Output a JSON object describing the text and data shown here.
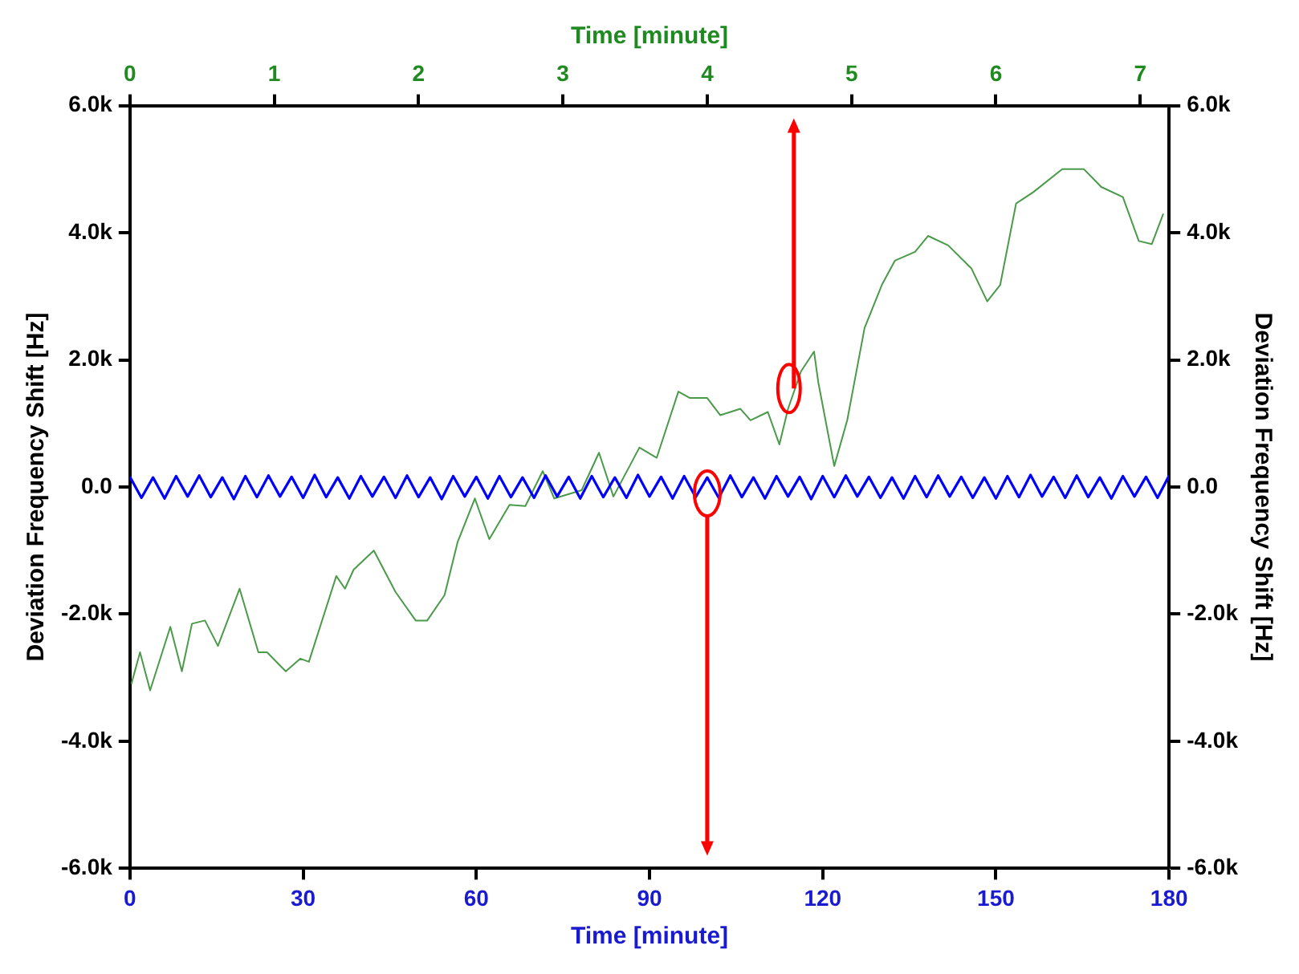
{
  "chart_data": {
    "type": "line",
    "xlabel": "Time [minute]",
    "x2label": "Time [minute]",
    "ylabel": "Deviation Frequency Shift [Hz]",
    "y2label": "Deviation Frequency Shift [Hz]",
    "xlim": [
      0,
      180
    ],
    "xticks": [
      0,
      30,
      60,
      90,
      120,
      150,
      180
    ],
    "x2lim": [
      0,
      7.2
    ],
    "x2ticks": [
      0,
      1,
      2,
      3,
      4,
      5,
      6,
      7
    ],
    "ylim": [
      -6000,
      6000
    ],
    "yticks": [
      {
        "value": -6000,
        "label": "-6.0k"
      },
      {
        "value": -4000,
        "label": "-4.0k"
      },
      {
        "value": -2000,
        "label": "-2.0k"
      },
      {
        "value": 0,
        "label": "0.0"
      },
      {
        "value": 2000,
        "label": "2.0k"
      },
      {
        "value": 4000,
        "label": "4.0k"
      },
      {
        "value": 6000,
        "label": "6.0k"
      }
    ],
    "y2lim": [
      -6000,
      6000
    ],
    "y2ticks": [
      {
        "value": -6000,
        "label": "-6.0k"
      },
      {
        "value": -4000,
        "label": "-4.0k"
      },
      {
        "value": -2000,
        "label": "-2.0k"
      },
      {
        "value": 0,
        "label": "0.0"
      },
      {
        "value": 2000,
        "label": "2.0k"
      },
      {
        "value": 4000,
        "label": "4.0k"
      },
      {
        "value": 6000,
        "label": "6.0k"
      }
    ],
    "grid": false,
    "legend": false,
    "marker": "none",
    "line_style": "solid",
    "series": [
      {
        "color": "#0000ff",
        "x": [
          0,
          2,
          4,
          6,
          8,
          10,
          12,
          14,
          16,
          18,
          20,
          22,
          24,
          26,
          28,
          30,
          32,
          34,
          36,
          38,
          40,
          42,
          44,
          46,
          48,
          50,
          52,
          54,
          56,
          58,
          60,
          62,
          64,
          66,
          68,
          70,
          72,
          74,
          76,
          78,
          80,
          82,
          84,
          86,
          88,
          90,
          92,
          94,
          96,
          98,
          100,
          102,
          104,
          106,
          108,
          110,
          112,
          114,
          116,
          118,
          120,
          122,
          124,
          126,
          128,
          130,
          132,
          134,
          136,
          138,
          140,
          142,
          144,
          146,
          148,
          150,
          152,
          154,
          156,
          158,
          160,
          162,
          164,
          166,
          168,
          170,
          172,
          174,
          176,
          178,
          180
        ],
        "values": [
          160,
          -170,
          150,
          -180,
          170,
          -150,
          180,
          -160,
          150,
          -190,
          170,
          -160,
          180,
          -150,
          160,
          -170,
          190,
          -160,
          150,
          -180,
          170,
          -150,
          160,
          -170,
          180,
          -160,
          150,
          -190,
          170,
          -150,
          160,
          -180,
          170,
          -160,
          150,
          -170,
          180,
          -150,
          160,
          -180,
          170,
          -160,
          150,
          -170,
          190,
          -150,
          160,
          -180,
          170,
          -160,
          150,
          -170,
          180,
          -160,
          150,
          -180,
          170,
          -150,
          160,
          -190,
          170,
          -160,
          180,
          -150,
          160,
          -170,
          150,
          -180,
          170,
          -160,
          180,
          -150,
          160,
          -170,
          150,
          -180,
          170,
          -160,
          190,
          -150,
          160,
          -170,
          180,
          -160,
          150,
          -180,
          170,
          -150,
          160,
          -170,
          180
        ]
      },
      {
        "color": "#4a9a4a",
        "axis": "x2",
        "x": [
          0.01,
          0.07,
          0.14,
          0.28,
          0.36,
          0.43,
          0.52,
          0.61,
          0.76,
          0.89,
          0.95,
          1.08,
          1.18,
          1.24,
          1.43,
          1.49,
          1.55,
          1.69,
          1.84,
          1.98,
          2.06,
          2.18,
          2.27,
          2.39,
          2.49,
          2.63,
          2.74,
          2.86,
          2.94,
          3.13,
          3.25,
          3.35,
          3.53,
          3.65,
          3.8,
          3.88,
          4.0,
          4.09,
          4.23,
          4.3,
          4.42,
          4.5,
          4.56,
          4.65,
          4.74,
          4.77,
          4.88,
          4.97,
          5.09,
          5.21,
          5.3,
          5.44,
          5.53,
          5.67,
          5.83,
          5.94,
          6.03,
          6.14,
          6.26,
          6.46,
          6.61,
          6.73,
          6.88,
          6.99,
          7.08,
          7.16
        ],
        "values": [
          -3100,
          -2600,
          -3200,
          -2200,
          -2900,
          -2150,
          -2100,
          -2500,
          -1600,
          -2600,
          -2600,
          -2900,
          -2700,
          -2750,
          -1400,
          -1600,
          -1300,
          -1000,
          -1650,
          -2100,
          -2100,
          -1700,
          -870,
          -180,
          -820,
          -280,
          -300,
          250,
          -180,
          -50,
          540,
          -150,
          620,
          460,
          1500,
          1400,
          1400,
          1130,
          1230,
          1050,
          1180,
          670,
          1230,
          1820,
          2130,
          1640,
          330,
          1050,
          2500,
          3180,
          3560,
          3700,
          3950,
          3800,
          3440,
          2920,
          3180,
          4460,
          4640,
          5000,
          5000,
          4720,
          4560,
          3870,
          3820,
          4300
        ]
      }
    ]
  }
}
